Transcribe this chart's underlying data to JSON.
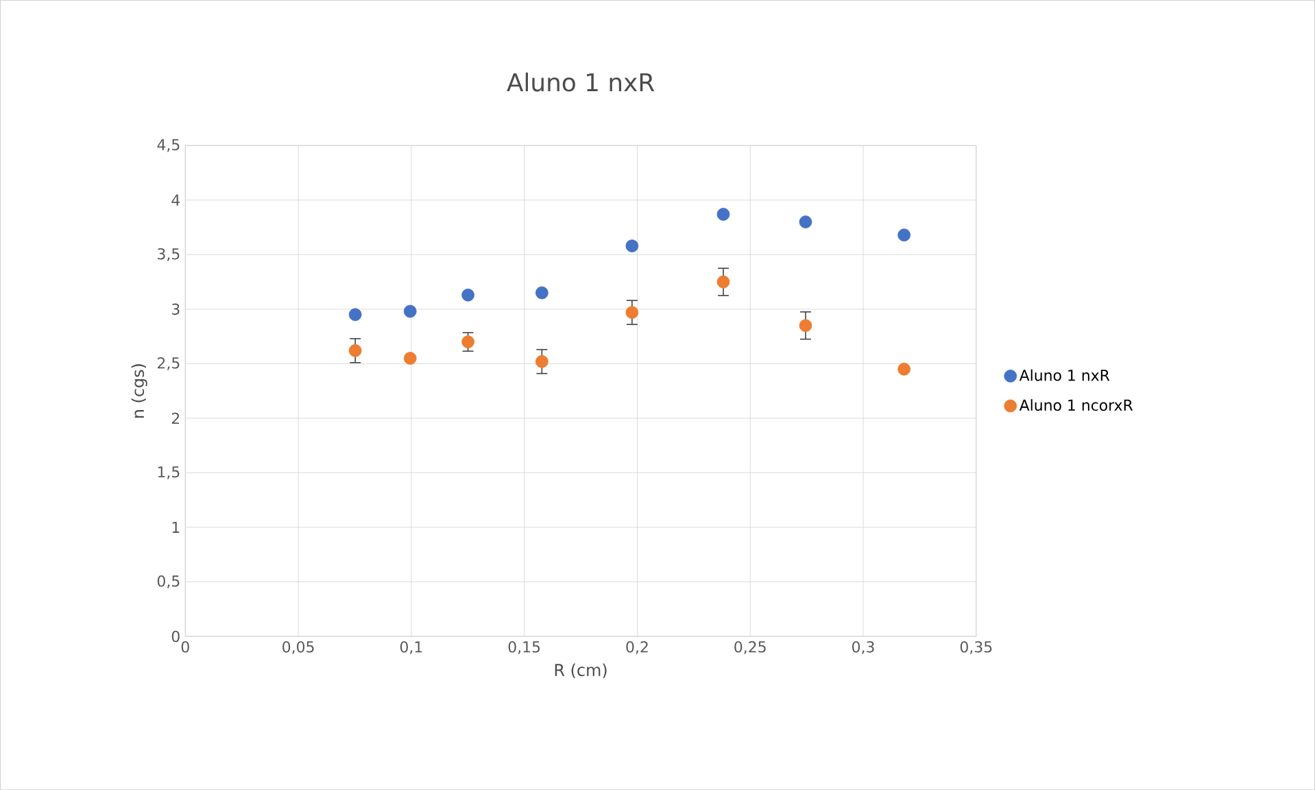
{
  "chart_data": {
    "type": "scatter",
    "title": "Aluno 1 nxR",
    "xlabel": "R (cm)",
    "ylabel": "n (cgs)",
    "x": [
      0.0752,
      0.0995,
      0.1251,
      0.1578,
      0.1977,
      0.2381,
      0.2745,
      0.3181
    ],
    "series": [
      {
        "name": "Aluno 1 nxR",
        "color": "#4472c4",
        "values": [
          2.95,
          2.98,
          3.13,
          3.15,
          3.58,
          3.87,
          3.8,
          3.68
        ]
      },
      {
        "name": "Aluno 1 ncorxR",
        "color": "#ed7d31",
        "values": [
          2.62,
          2.55,
          2.7,
          2.52,
          2.97,
          3.25,
          2.85,
          2.45
        ],
        "errors": [
          0.11,
          null,
          0.085,
          0.11,
          0.11,
          0.125,
          0.125,
          null
        ]
      }
    ],
    "xlim": [
      0,
      0.35
    ],
    "xticks": [
      0,
      {
        "value": 0.05,
        "label": "0,05"
      },
      {
        "value": 0.1,
        "label": "0,1"
      },
      {
        "value": 0.15,
        "label": "0,15"
      },
      {
        "value": 0.2,
        "label": "0,2"
      },
      {
        "value": 0.25,
        "label": "0,25"
      },
      {
        "value": 0.3,
        "label": "0,3"
      },
      {
        "value": 0.35,
        "label": "0,35"
      }
    ],
    "ylim": [
      0,
      4.5
    ],
    "yticks": [
      0,
      {
        "value": 0.5,
        "label": "0,5"
      },
      1,
      {
        "value": 1.5,
        "label": "1,5"
      },
      2,
      {
        "value": 2.5,
        "label": "2,5"
      },
      3,
      {
        "value": 3.5,
        "label": "3,5"
      },
      4,
      {
        "value": 4.5,
        "label": "4,5"
      }
    ],
    "grid": true,
    "legend": "right",
    "marker": "circle"
  }
}
